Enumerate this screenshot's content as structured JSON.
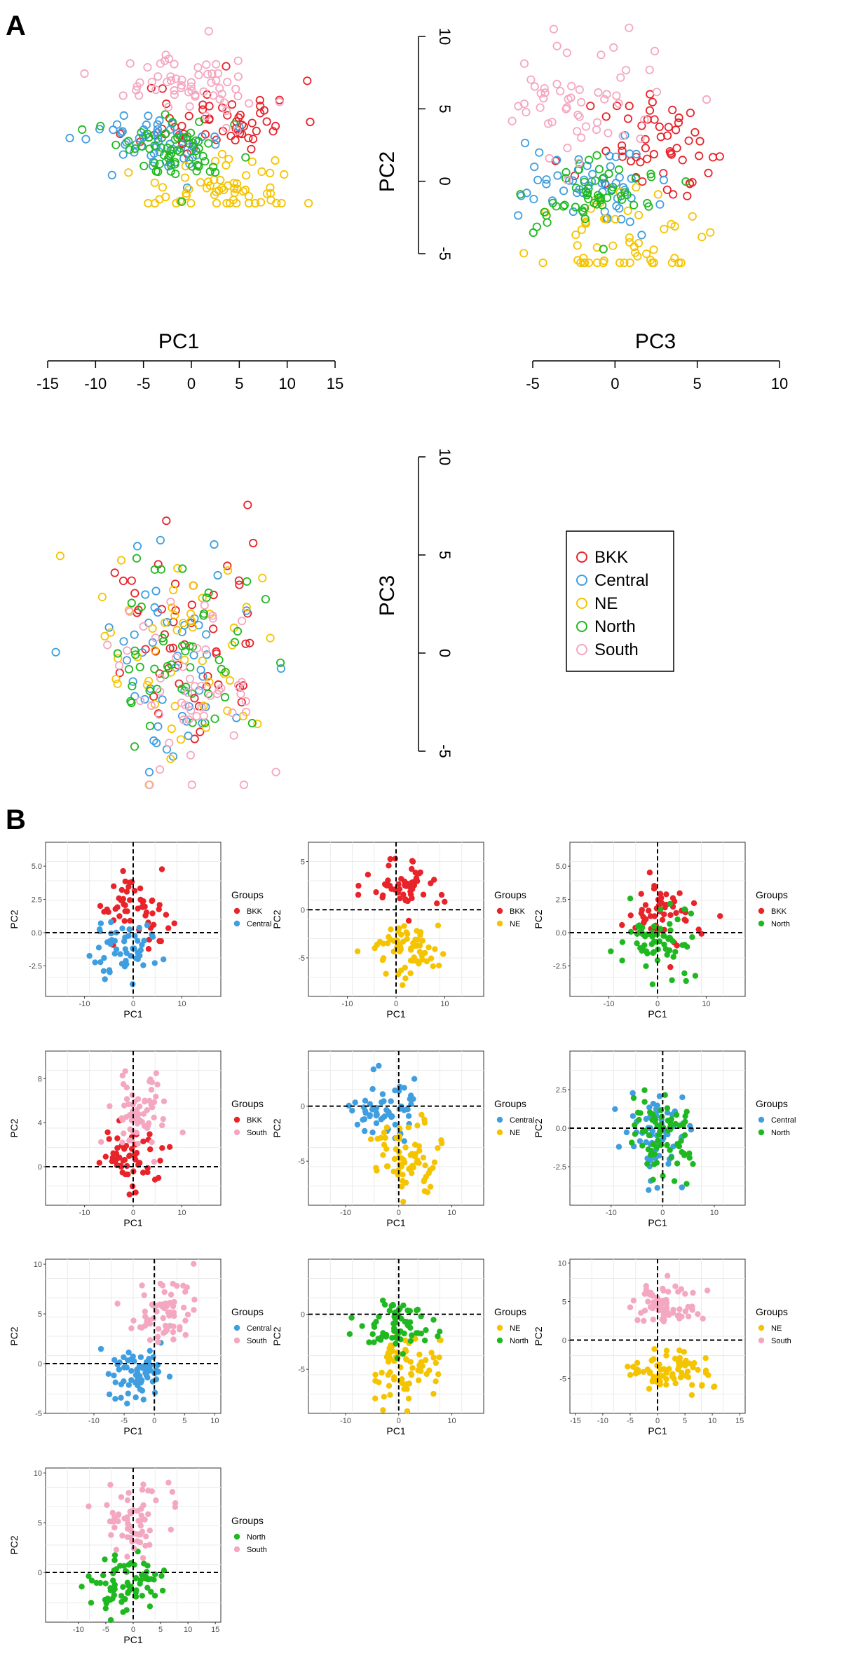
{
  "figure": {
    "panel_a_letter": "A",
    "panel_b_letter": "B"
  },
  "colors": {
    "BKK": "#e8232a",
    "Central": "#3f9ee0",
    "NE": "#f5c400",
    "North": "#20b820",
    "South": "#f4a7c0"
  },
  "chart_data": [
    {
      "id": "A-PC1-PC2",
      "type": "scatter",
      "marker": "open-circle",
      "xlabel": "PC1",
      "ylabel": "PC2",
      "xlim": [
        -15,
        15
      ],
      "ylim": [
        -5,
        10
      ],
      "xticks": [
        "-15",
        "-10",
        "-5",
        "0",
        "5",
        "10",
        "15"
      ],
      "yticks": [
        "-5",
        "0",
        "5",
        "10"
      ],
      "series": [
        {
          "name": "BKK",
          "seed": 11,
          "n": 60,
          "center": [
            2,
            2
          ],
          "spread": [
            6,
            2.2
          ]
        },
        {
          "name": "Central",
          "seed": 12,
          "n": 60,
          "center": [
            -3,
            0
          ],
          "spread": [
            5.5,
            1.6
          ]
        },
        {
          "name": "NE",
          "seed": 13,
          "n": 60,
          "center": [
            2,
            -4
          ],
          "spread": [
            6,
            2
          ]
        },
        {
          "name": "North",
          "seed": 14,
          "n": 60,
          "center": [
            -1,
            -0.5
          ],
          "spread": [
            5.5,
            1.8
          ]
        },
        {
          "name": "South",
          "seed": 15,
          "n": 60,
          "center": [
            0,
            5
          ],
          "spread": [
            5.5,
            2.3
          ]
        }
      ]
    },
    {
      "id": "A-PC3-PC2",
      "type": "scatter",
      "marker": "open-circle",
      "xlabel": "PC3",
      "ylabel": "PC2",
      "xlim": [
        -5,
        10
      ],
      "ylim": [
        -5,
        10
      ],
      "xticks": [
        "-5",
        "0",
        "5",
        "10"
      ],
      "yticks": [
        "-5",
        "0",
        "5",
        "10"
      ],
      "series": [
        {
          "name": "BKK",
          "seed": 21,
          "n": 55,
          "center": [
            3,
            2
          ],
          "spread": [
            3,
            2.2
          ]
        },
        {
          "name": "Central",
          "seed": 22,
          "n": 55,
          "center": [
            -1,
            0
          ],
          "spread": [
            3,
            1.6
          ]
        },
        {
          "name": "NE",
          "seed": 23,
          "n": 55,
          "center": [
            1,
            -4
          ],
          "spread": [
            3.2,
            2
          ]
        },
        {
          "name": "North",
          "seed": 24,
          "n": 55,
          "center": [
            -1,
            -1
          ],
          "spread": [
            2.8,
            1.8
          ]
        },
        {
          "name": "South",
          "seed": 25,
          "n": 55,
          "center": [
            -1,
            5
          ],
          "spread": [
            3.2,
            2.3
          ]
        }
      ]
    },
    {
      "id": "A-PC1-PC3",
      "type": "scatter",
      "marker": "open-circle",
      "xlabel": "PC1",
      "ylabel": "PC3",
      "xlim": [
        -15,
        15
      ],
      "ylim": [
        -5,
        10
      ],
      "xticks": [],
      "yticks": [
        "-5",
        "0",
        "5",
        "10"
      ],
      "series": [
        {
          "name": "BKK",
          "seed": 31,
          "n": 50,
          "center": [
            -1,
            1
          ],
          "spread": [
            6,
            3
          ]
        },
        {
          "name": "Central",
          "seed": 32,
          "n": 50,
          "center": [
            -2,
            0.5
          ],
          "spread": [
            6,
            3
          ]
        },
        {
          "name": "NE",
          "seed": 33,
          "n": 50,
          "center": [
            -1,
            0
          ],
          "spread": [
            6,
            3
          ]
        },
        {
          "name": "North",
          "seed": 34,
          "n": 50,
          "center": [
            -1,
            0
          ],
          "spread": [
            6,
            3
          ]
        },
        {
          "name": "South",
          "seed": 35,
          "n": 50,
          "center": [
            0,
            -1
          ],
          "spread": [
            6,
            3
          ]
        }
      ]
    },
    {
      "id": "A-legend",
      "type": "legend",
      "entries": [
        "BKK",
        "Central",
        "NE",
        "North",
        "South"
      ]
    },
    {
      "id": "B-1",
      "type": "scatter",
      "marker": "filled-circle",
      "xlabel": "PC1",
      "ylabel": "PC2",
      "xlim": [
        -18,
        18
      ],
      "ylim": [
        -4.8,
        6.8
      ],
      "xticks": [
        -10,
        0,
        10
      ],
      "yticks": [
        -2.5,
        0.0,
        2.5,
        5.0
      ],
      "ytick_labels": [
        "-2.5",
        "0.0",
        "2.5",
        "5.0"
      ],
      "legend_title": "Groups",
      "series": [
        {
          "name": "BKK",
          "seed": 101,
          "n": 55,
          "center": [
            0,
            2
          ],
          "spread": [
            6,
            1.8
          ]
        },
        {
          "name": "Central",
          "seed": 102,
          "n": 55,
          "center": [
            -2,
            -1.2
          ],
          "spread": [
            5,
            1.6
          ]
        }
      ]
    },
    {
      "id": "B-2",
      "type": "scatter",
      "marker": "filled-circle",
      "xlabel": "PC1",
      "ylabel": "PC2",
      "xlim": [
        -18,
        18
      ],
      "ylim": [
        -9,
        7
      ],
      "xticks": [
        -10,
        0,
        10
      ],
      "yticks": [
        -5,
        0,
        5
      ],
      "ytick_labels": [
        "-5",
        "0",
        "5"
      ],
      "legend_title": "Groups",
      "series": [
        {
          "name": "BKK",
          "seed": 111,
          "n": 55,
          "center": [
            1,
            2.5
          ],
          "spread": [
            6,
            1.8
          ]
        },
        {
          "name": "NE",
          "seed": 112,
          "n": 65,
          "center": [
            2,
            -4
          ],
          "spread": [
            6,
            2
          ]
        }
      ]
    },
    {
      "id": "B-3",
      "type": "scatter",
      "marker": "filled-circle",
      "xlabel": "PC1",
      "ylabel": "PC2",
      "xlim": [
        -18,
        18
      ],
      "ylim": [
        -4.8,
        6.8
      ],
      "xticks": [
        -10,
        0,
        10
      ],
      "yticks": [
        -2.5,
        0.0,
        2.5,
        5.0
      ],
      "ytick_labels": [
        "-2.5",
        "0.0",
        "2.5",
        "5.0"
      ],
      "legend_title": "Groups",
      "series": [
        {
          "name": "BKK",
          "seed": 121,
          "n": 55,
          "center": [
            1,
            1.5
          ],
          "spread": [
            6,
            1.8
          ]
        },
        {
          "name": "North",
          "seed": 122,
          "n": 65,
          "center": [
            0,
            -0.8
          ],
          "spread": [
            6,
            1.8
          ]
        }
      ]
    },
    {
      "id": "B-4",
      "type": "scatter",
      "marker": "filled-circle",
      "xlabel": "PC1",
      "ylabel": "PC2",
      "xlim": [
        -18,
        18
      ],
      "ylim": [
        -3.5,
        10.5
      ],
      "xticks": [
        -10,
        0,
        10
      ],
      "yticks": [
        0,
        4,
        8
      ],
      "ytick_labels": [
        "0",
        "4",
        "8"
      ],
      "legend_title": "Groups",
      "series": [
        {
          "name": "BKK",
          "seed": 131,
          "n": 55,
          "center": [
            -1,
            1
          ],
          "spread": [
            6,
            1.8
          ]
        },
        {
          "name": "South",
          "seed": 132,
          "n": 65,
          "center": [
            1,
            5
          ],
          "spread": [
            5,
            2.3
          ]
        }
      ]
    },
    {
      "id": "B-5",
      "type": "scatter",
      "marker": "filled-circle",
      "xlabel": "PC1",
      "ylabel": "PC2",
      "xlim": [
        -17,
        16
      ],
      "ylim": [
        -9,
        5
      ],
      "xticks": [
        -10,
        0,
        10
      ],
      "yticks": [
        -5,
        0
      ],
      "ytick_labels": [
        "-5",
        "0"
      ],
      "legend_title": "Groups",
      "series": [
        {
          "name": "Central",
          "seed": 141,
          "n": 60,
          "center": [
            -2,
            -0.5
          ],
          "spread": [
            5,
            1.8
          ]
        },
        {
          "name": "NE",
          "seed": 142,
          "n": 70,
          "center": [
            2,
            -4.5
          ],
          "spread": [
            5.5,
            2
          ]
        }
      ]
    },
    {
      "id": "B-6",
      "type": "scatter",
      "marker": "filled-circle",
      "xlabel": "PC1",
      "ylabel": "PC2",
      "xlim": [
        -18,
        16
      ],
      "ylim": [
        -5,
        5
      ],
      "xticks": [
        -10,
        0,
        10
      ],
      "yticks": [
        -2.5,
        0.0,
        2.5
      ],
      "ytick_labels": [
        "-2.5",
        "0.0",
        "2.5"
      ],
      "legend_title": "Groups",
      "series": [
        {
          "name": "Central",
          "seed": 151,
          "n": 65,
          "center": [
            -1,
            -0.5
          ],
          "spread": [
            5,
            1.8
          ]
        },
        {
          "name": "North",
          "seed": 152,
          "n": 75,
          "center": [
            0,
            -0.3
          ],
          "spread": [
            5,
            1.6
          ]
        }
      ]
    },
    {
      "id": "B-7",
      "type": "scatter",
      "marker": "filled-circle",
      "xlabel": "PC1",
      "ylabel": "PC2",
      "xlim": [
        -18,
        11
      ],
      "ylim": [
        -5,
        10.5
      ],
      "xticks": [
        -10,
        -5,
        0,
        5,
        10
      ],
      "yticks": [
        -5,
        0,
        5,
        10
      ],
      "ytick_labels": [
        "-5",
        "0",
        "5",
        "10"
      ],
      "legend_title": "Groups",
      "series": [
        {
          "name": "Central",
          "seed": 161,
          "n": 70,
          "center": [
            -3,
            -0.8
          ],
          "spread": [
            4.5,
            1.7
          ]
        },
        {
          "name": "South",
          "seed": 162,
          "n": 65,
          "center": [
            1,
            5
          ],
          "spread": [
            4.5,
            2.3
          ]
        }
      ]
    },
    {
      "id": "B-8",
      "type": "scatter",
      "marker": "filled-circle",
      "xlabel": "PC1",
      "ylabel": "PC2",
      "xlim": [
        -17,
        16
      ],
      "ylim": [
        -9,
        5
      ],
      "xticks": [
        -10,
        0,
        10
      ],
      "yticks": [
        -5,
        0
      ],
      "ytick_labels": [
        "-5",
        "0"
      ],
      "legend_title": "Groups",
      "series": [
        {
          "name": "NE",
          "seed": 171,
          "n": 70,
          "center": [
            1,
            -5
          ],
          "spread": [
            5.5,
            2
          ]
        },
        {
          "name": "North",
          "seed": 172,
          "n": 70,
          "center": [
            0,
            -1
          ],
          "spread": [
            5,
            1.8
          ]
        }
      ]
    },
    {
      "id": "B-9",
      "type": "scatter",
      "marker": "filled-circle",
      "xlabel": "PC1",
      "ylabel": "PC2",
      "xlim": [
        -16,
        16
      ],
      "ylim": [
        -9.5,
        10.5
      ],
      "xticks": [
        -15,
        -10,
        -5,
        0,
        5,
        10,
        15
      ],
      "yticks": [
        -5,
        0,
        5,
        10
      ],
      "ytick_labels": [
        "-5",
        "0",
        "5",
        "10"
      ],
      "legend_title": "Groups",
      "series": [
        {
          "name": "NE",
          "seed": 181,
          "n": 75,
          "center": [
            1,
            -4
          ],
          "spread": [
            5.5,
            2
          ]
        },
        {
          "name": "South",
          "seed": 182,
          "n": 65,
          "center": [
            1,
            5
          ],
          "spread": [
            5,
            2.2
          ]
        }
      ]
    },
    {
      "id": "B-10",
      "type": "scatter",
      "marker": "filled-circle",
      "xlabel": "PC1",
      "ylabel": "PC2",
      "xlim": [
        -16,
        16
      ],
      "ylim": [
        -5,
        10.5
      ],
      "xticks": [
        -10,
        -5,
        0,
        5,
        10,
        15
      ],
      "yticks": [
        0,
        5,
        10
      ],
      "ytick_labels": [
        "0",
        "5",
        "10"
      ],
      "legend_title": "Groups",
      "series": [
        {
          "name": "North",
          "seed": 191,
          "n": 75,
          "center": [
            -1,
            -1
          ],
          "spread": [
            5.5,
            1.8
          ]
        },
        {
          "name": "South",
          "seed": 192,
          "n": 65,
          "center": [
            0,
            5
          ],
          "spread": [
            5,
            2.3
          ]
        }
      ]
    }
  ]
}
